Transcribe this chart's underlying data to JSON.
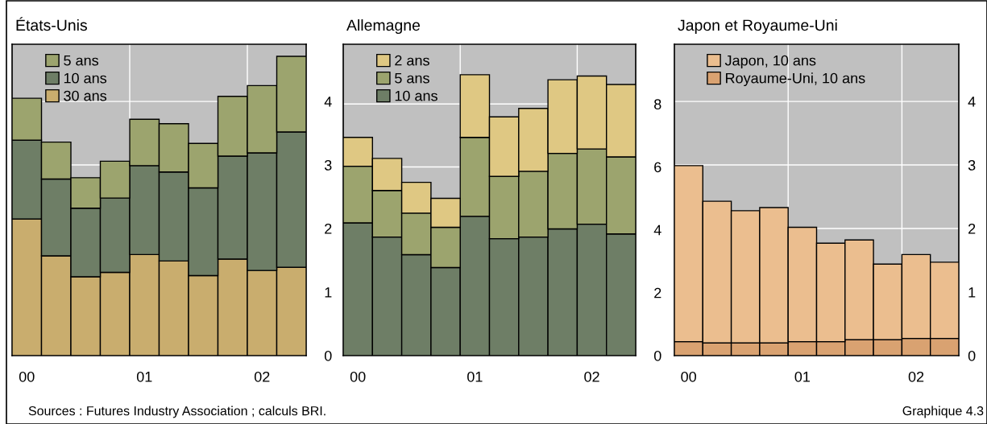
{
  "chart_data": [
    {
      "type": "bar",
      "title": "États-Unis",
      "stacked": true,
      "categories": [
        "00",
        null,
        null,
        null,
        "01",
        null,
        null,
        null,
        "02",
        null
      ],
      "ylim": [
        0,
        4.9
      ],
      "yticks": [
        0,
        1,
        2,
        3,
        4
      ],
      "grid": true,
      "legend": "top left",
      "series": [
        {
          "name": "30 ans",
          "color": "#c9ad6e",
          "values": [
            2.15,
            1.57,
            1.24,
            1.31,
            1.59,
            1.49,
            1.26,
            1.52,
            1.34,
            1.39
          ]
        },
        {
          "name": "10 ans",
          "color": "#6e7e66",
          "values": [
            1.24,
            1.21,
            1.08,
            1.17,
            1.4,
            1.4,
            1.38,
            1.62,
            1.85,
            2.13
          ]
        },
        {
          "name": "5 ans",
          "color": "#9ca46e",
          "values": [
            0.66,
            0.58,
            0.48,
            0.58,
            0.73,
            0.76,
            0.7,
            0.94,
            1.06,
            1.19
          ]
        }
      ],
      "annotations": [
        "Sources : Futures Industry Association ; calculs BRI."
      ]
    },
    {
      "type": "bar",
      "title": "Allemagne",
      "stacked": true,
      "categories": [
        "00",
        null,
        null,
        null,
        "01",
        null,
        null,
        null,
        "02",
        null
      ],
      "ylim": [
        0,
        9.9
      ],
      "yticks": [
        0,
        2,
        4,
        6,
        8
      ],
      "grid": true,
      "legend": "top left",
      "series": [
        {
          "name": "10 ans",
          "color": "#6e7e66",
          "values": [
            4.22,
            3.77,
            3.21,
            2.8,
            4.43,
            3.72,
            3.77,
            4.03,
            4.18,
            3.87
          ]
        },
        {
          "name": "5 ans",
          "color": "#9ca46e",
          "values": [
            1.8,
            1.48,
            1.32,
            1.28,
            2.51,
            1.98,
            2.09,
            2.4,
            2.39,
            2.45
          ]
        },
        {
          "name": "2 ans",
          "color": "#dfc883",
          "values": [
            0.92,
            1.02,
            0.98,
            0.92,
            1.99,
            1.89,
            2.0,
            2.34,
            2.32,
            2.3
          ]
        }
      ]
    },
    {
      "type": "bar",
      "title": "Japon et Royaume-Uni",
      "stacked": true,
      "categories": [
        "00",
        null,
        null,
        null,
        "01",
        null,
        null,
        null,
        "02",
        null
      ],
      "ylim": [
        0,
        4.9
      ],
      "yticks": [
        0,
        1,
        2,
        3,
        4
      ],
      "grid": true,
      "legend": "top left",
      "series": [
        {
          "name": "Royaume-Uni, 10 ans",
          "color": "#d9a271",
          "values": [
            0.22,
            0.2,
            0.2,
            0.2,
            0.22,
            0.22,
            0.25,
            0.25,
            0.27,
            0.27
          ]
        },
        {
          "name": "Japon, 10 ans",
          "color": "#ebbe8f",
          "values": [
            2.77,
            2.23,
            2.08,
            2.13,
            1.8,
            1.55,
            1.57,
            1.19,
            1.32,
            1.2
          ]
        }
      ],
      "annotations": [
        "Graphique 4.3"
      ]
    }
  ]
}
